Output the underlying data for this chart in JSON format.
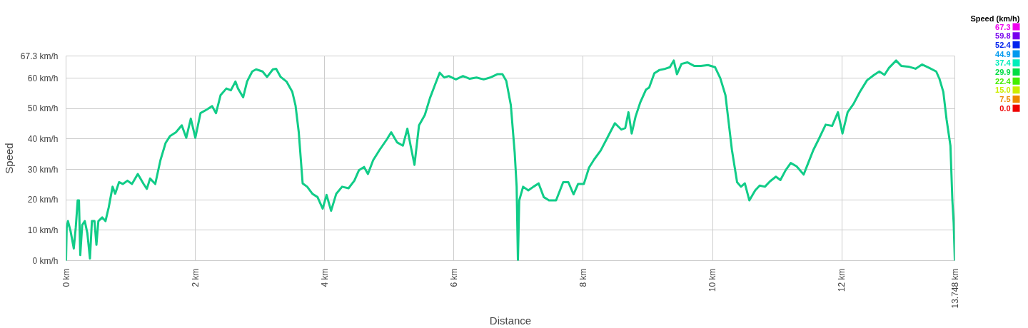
{
  "chart_data": {
    "type": "line",
    "xlabel": "Distance",
    "ylabel": "Speed",
    "clabel": "Speed (km/h)",
    "x": [
      0.0,
      0.01,
      0.03,
      0.07,
      0.12,
      0.15,
      0.18,
      0.2,
      0.22,
      0.25,
      0.29,
      0.33,
      0.37,
      0.4,
      0.44,
      0.47,
      0.5,
      0.56,
      0.61,
      0.66,
      0.72,
      0.76,
      0.82,
      0.88,
      0.95,
      1.02,
      1.11,
      1.2,
      1.25,
      1.3,
      1.38,
      1.46,
      1.54,
      1.61,
      1.7,
      1.79,
      1.86,
      1.93,
      2.0,
      2.08,
      2.18,
      2.26,
      2.32,
      2.39,
      2.48,
      2.55,
      2.62,
      2.66,
      2.74,
      2.8,
      2.88,
      2.94,
      3.04,
      3.11,
      3.2,
      3.25,
      3.32,
      3.41,
      3.5,
      3.55,
      3.6,
      3.66,
      3.73,
      3.81,
      3.89,
      3.97,
      4.03,
      4.1,
      4.18,
      4.27,
      4.37,
      4.46,
      4.53,
      4.61,
      4.67,
      4.75,
      4.85,
      4.96,
      5.03,
      5.12,
      5.21,
      5.28,
      5.33,
      5.39,
      5.46,
      5.55,
      5.63,
      5.71,
      5.78,
      5.85,
      5.92,
      6.03,
      6.14,
      6.24,
      6.35,
      6.46,
      6.56,
      6.67,
      6.75,
      6.81,
      6.88,
      6.94,
      6.97,
      6.99,
      7.01,
      7.07,
      7.15,
      7.23,
      7.31,
      7.39,
      7.47,
      7.58,
      7.69,
      7.77,
      7.85,
      7.92,
      8.01,
      8.09,
      8.17,
      8.27,
      8.38,
      8.49,
      8.59,
      8.65,
      8.7,
      8.75,
      8.81,
      8.88,
      8.97,
      9.02,
      9.1,
      9.18,
      9.27,
      9.34,
      9.4,
      9.45,
      9.52,
      9.61,
      9.72,
      9.82,
      9.93,
      10.04,
      10.12,
      10.2,
      10.25,
      10.3,
      10.38,
      10.44,
      10.5,
      10.57,
      10.66,
      10.73,
      10.81,
      10.89,
      10.98,
      11.05,
      11.13,
      11.21,
      11.3,
      11.41,
      11.48,
      11.56,
      11.64,
      11.75,
      11.85,
      11.94,
      12.01,
      12.09,
      12.18,
      12.28,
      12.39,
      12.5,
      12.58,
      12.66,
      12.73,
      12.84,
      12.92,
      13.03,
      13.14,
      13.24,
      13.35,
      13.46,
      13.51,
      13.57,
      13.62,
      13.68,
      13.71,
      13.73,
      13.748
    ],
    "series": [
      {
        "color": "#11cc88",
        "values": [
          0,
          10.8,
          13.0,
          9.7,
          4.0,
          10.8,
          19.8,
          19.8,
          1.8,
          11.7,
          13.0,
          9.0,
          0.7,
          13.0,
          13.0,
          5.2,
          13.0,
          14.2,
          13.0,
          17.5,
          24.3,
          22.0,
          25.8,
          25.2,
          26.3,
          25.2,
          28.5,
          25.2,
          23.6,
          27.0,
          25.2,
          33.0,
          38.7,
          41.0,
          42.2,
          44.5,
          40.4,
          46.7,
          40.4,
          48.5,
          49.7,
          50.8,
          48.5,
          54.4,
          56.6,
          56.0,
          58.9,
          56.6,
          53.7,
          58.9,
          62.2,
          62.9,
          62.2,
          60.4,
          62.9,
          63.1,
          60.4,
          58.9,
          55.5,
          51.0,
          42.2,
          25.4,
          24.3,
          22.0,
          20.9,
          17.1,
          21.6,
          16.4,
          22.0,
          24.3,
          23.8,
          26.3,
          29.7,
          30.8,
          28.5,
          33.0,
          36.4,
          39.8,
          42.2,
          38.9,
          37.8,
          43.4,
          37.8,
          31.5,
          44.5,
          47.9,
          53.5,
          58.0,
          61.8,
          60.2,
          60.7,
          59.6,
          60.7,
          59.8,
          60.2,
          59.6,
          60.2,
          61.3,
          61.3,
          59.1,
          51.2,
          35.5,
          24.3,
          0,
          19.8,
          24.3,
          23.1,
          24.3,
          25.4,
          20.9,
          19.8,
          19.8,
          25.8,
          25.8,
          21.8,
          25.2,
          25.2,
          30.6,
          33.3,
          36.2,
          40.7,
          45.2,
          43.1,
          43.6,
          48.8,
          41.8,
          47.4,
          51.9,
          56.2,
          56.9,
          61.6,
          62.7,
          63.1,
          63.6,
          65.8,
          61.3,
          64.7,
          65.2,
          64.0,
          64.0,
          64.3,
          63.6,
          60.0,
          54.4,
          45.4,
          36.4,
          25.8,
          24.3,
          25.4,
          19.8,
          23.1,
          24.7,
          24.3,
          26.1,
          27.6,
          26.5,
          29.7,
          32.1,
          31.0,
          28.3,
          32.1,
          36.4,
          39.8,
          44.7,
          44.3,
          48.8,
          41.8,
          48.8,
          51.5,
          55.5,
          59.3,
          61.1,
          62.2,
          61.1,
          63.4,
          65.8,
          64.0,
          63.8,
          63.1,
          64.5,
          63.4,
          62.2,
          59.8,
          55.5,
          46.5,
          37.8,
          19.8,
          12.4,
          0
        ]
      }
    ],
    "xlim": [
      0,
      13.748
    ],
    "xticks": [
      {
        "value": 0,
        "label": "0 km"
      },
      {
        "value": 2,
        "label": "2 km"
      },
      {
        "value": 4,
        "label": "4 km"
      },
      {
        "value": 6,
        "label": "6 km"
      },
      {
        "value": 8,
        "label": "8 km"
      },
      {
        "value": 10,
        "label": "10 km"
      },
      {
        "value": 12,
        "label": "12 km"
      },
      {
        "value": 13.748,
        "label": "13.748 km"
      }
    ],
    "ylim": [
      0,
      67.3
    ],
    "yticks": [
      {
        "value": 0,
        "label": "0 km/h"
      },
      {
        "value": 10,
        "label": "10 km/h"
      },
      {
        "value": 20,
        "label": "20 km/h"
      },
      {
        "value": 30,
        "label": "30 km/h"
      },
      {
        "value": 40,
        "label": "40 km/h"
      },
      {
        "value": 50,
        "label": "50 km/h"
      },
      {
        "value": 60,
        "label": "60 km/h"
      },
      {
        "value": 67.3,
        "label": "67.3 km/h"
      }
    ],
    "clim": [
      0,
      67.3
    ],
    "cticks": [
      {
        "value": 0,
        "label": "0.0"
      },
      {
        "value": 7.5,
        "label": "7.5"
      },
      {
        "value": 15.0,
        "label": "15.0"
      },
      {
        "value": 22.4,
        "label": "22.4"
      },
      {
        "value": 29.9,
        "label": "29.9"
      },
      {
        "value": 37.4,
        "label": "37.4"
      },
      {
        "value": 44.9,
        "label": "44.9"
      },
      {
        "value": 52.4,
        "label": "52.4"
      },
      {
        "value": 59.8,
        "label": "59.8"
      },
      {
        "value": 67.3,
        "label": "67.3"
      }
    ],
    "colors": [
      "#ee0000",
      "#ee8800",
      "#ccee00",
      "#44ee00",
      "#00dd44",
      "#00eebb",
      "#0099ee",
      "#0022ee",
      "#7700ee",
      "#ee00ee"
    ],
    "grid": true
  }
}
